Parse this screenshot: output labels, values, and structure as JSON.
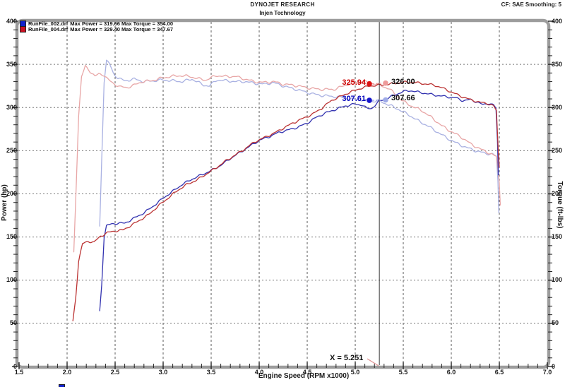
{
  "header": {
    "brand": "DYNOJET RESEARCH",
    "operator": "Injen Technology",
    "correction": "CF: SAE  Smoothing: 5"
  },
  "legend": {
    "runs": [
      {
        "file": "RunFile_002.drf",
        "power": "Max Power = 319.66",
        "torque": "Max Torque = 354.00",
        "color": "#1122cc"
      },
      {
        "file": "RunFile_004.drf",
        "power": "Max Power = 329.40",
        "torque": "Max Torque = 347.67",
        "color": "#cc1122"
      }
    ]
  },
  "cursor": {
    "x_value": 5.251,
    "x_label": "X = 5.251",
    "readouts": [
      {
        "value_label": "325.94",
        "text_color": "#cc0000",
        "dot_color": "#dd1111",
        "dot": {
          "rpm": 5.147,
          "value": 327.5
        }
      },
      {
        "value_label": "326.00",
        "text_color": "#111111",
        "dot_color": "#ee9a9a",
        "dot": {
          "rpm": 5.316,
          "value": 328.3
        }
      },
      {
        "value_label": "307.61",
        "text_color": "#0000bb",
        "dot_color": "#1515cc",
        "dot": {
          "rpm": 5.147,
          "value": 308.3
        }
      },
      {
        "value_label": "307.66",
        "text_color": "#111111",
        "dot_color": "#9fabe8",
        "dot": {
          "rpm": 5.316,
          "value": 308.8
        }
      }
    ]
  },
  "chart_data": {
    "type": "line",
    "title": "DYNOJET RESEARCH - Injen Technology",
    "xlabel": "Engine Speed (RPM x1000)",
    "ylabel_left": "Power (hp)",
    "ylabel_right": "Torque (ft-lbs)",
    "xlim": [
      1.5,
      7.0
    ],
    "ylim_left": [
      0,
      400
    ],
    "ylim_right": [
      0,
      400
    ],
    "x_major_step": 0.5,
    "x_minor_step": 0.1,
    "y_major_step": 50,
    "y_minor_step": 10,
    "grid": "dashed",
    "legend_position": "top-left",
    "cursor_x": 5.251,
    "series": [
      {
        "name": "RunFile_002.drf Torque (ft-lbs)",
        "color": "#a9b1e2",
        "axis": "right",
        "max": 354.0,
        "points": [
          [
            2.34,
            162
          ],
          [
            2.36,
            240
          ],
          [
            2.385,
            330
          ],
          [
            2.41,
            354
          ],
          [
            2.44,
            351
          ],
          [
            2.48,
            340
          ],
          [
            2.53,
            334
          ],
          [
            2.6,
            331
          ],
          [
            2.7,
            333
          ],
          [
            2.8,
            330
          ],
          [
            2.9,
            331
          ],
          [
            3.0,
            332
          ],
          [
            3.1,
            331
          ],
          [
            3.2,
            330
          ],
          [
            3.3,
            333
          ],
          [
            3.42,
            326
          ],
          [
            3.48,
            325
          ],
          [
            3.56,
            332
          ],
          [
            3.66,
            331
          ],
          [
            3.76,
            330
          ],
          [
            3.86,
            330
          ],
          [
            3.96,
            328
          ],
          [
            4.06,
            327
          ],
          [
            4.14,
            329
          ],
          [
            4.25,
            325
          ],
          [
            4.35,
            322
          ],
          [
            4.45,
            319
          ],
          [
            4.55,
            316
          ],
          [
            4.65,
            314
          ],
          [
            4.75,
            313
          ],
          [
            4.85,
            312
          ],
          [
            4.95,
            310
          ],
          [
            5.05,
            309
          ],
          [
            5.15,
            307
          ],
          [
            5.251,
            307.66
          ],
          [
            5.35,
            303
          ],
          [
            5.45,
            298
          ],
          [
            5.55,
            292
          ],
          [
            5.65,
            285
          ],
          [
            5.75,
            279
          ],
          [
            5.85,
            272
          ],
          [
            5.95,
            265
          ],
          [
            6.05,
            259
          ],
          [
            6.15,
            254
          ],
          [
            6.25,
            250
          ],
          [
            6.35,
            247
          ],
          [
            6.43,
            246
          ],
          [
            6.47,
            243
          ],
          [
            6.485,
            215
          ],
          [
            6.495,
            178
          ]
        ]
      },
      {
        "name": "RunFile_004.drf Torque (ft-lbs)",
        "color": "#e8a6a6",
        "axis": "right",
        "max": 347.67,
        "points": [
          [
            2.07,
            132
          ],
          [
            2.095,
            210
          ],
          [
            2.12,
            290
          ],
          [
            2.15,
            335
          ],
          [
            2.19,
            348
          ],
          [
            2.24,
            342
          ],
          [
            2.29,
            336
          ],
          [
            2.33,
            339
          ],
          [
            2.38,
            338
          ],
          [
            2.43,
            332
          ],
          [
            2.48,
            328
          ],
          [
            2.55,
            324
          ],
          [
            2.62,
            323
          ],
          [
            2.7,
            326
          ],
          [
            2.78,
            330
          ],
          [
            2.88,
            331
          ],
          [
            2.98,
            334
          ],
          [
            3.08,
            336
          ],
          [
            3.18,
            337
          ],
          [
            3.28,
            336
          ],
          [
            3.38,
            333
          ],
          [
            3.45,
            332
          ],
          [
            3.55,
            337
          ],
          [
            3.65,
            336
          ],
          [
            3.75,
            336
          ],
          [
            3.85,
            333
          ],
          [
            3.95,
            330
          ],
          [
            4.05,
            329
          ],
          [
            4.15,
            330
          ],
          [
            4.25,
            327
          ],
          [
            4.35,
            326
          ],
          [
            4.45,
            324
          ],
          [
            4.55,
            322
          ],
          [
            4.65,
            321
          ],
          [
            4.78,
            321
          ],
          [
            4.88,
            325
          ],
          [
            4.98,
            329
          ],
          [
            5.08,
            330
          ],
          [
            5.18,
            328
          ],
          [
            5.251,
            326.0
          ],
          [
            5.35,
            322
          ],
          [
            5.42,
            315
          ],
          [
            5.5,
            307
          ],
          [
            5.6,
            301
          ],
          [
            5.7,
            296
          ],
          [
            5.8,
            288
          ],
          [
            5.9,
            279
          ],
          [
            6.0,
            272
          ],
          [
            6.1,
            266
          ],
          [
            6.2,
            258
          ],
          [
            6.3,
            252
          ],
          [
            6.4,
            247
          ],
          [
            6.47,
            243
          ],
          [
            6.5,
            213
          ],
          [
            6.51,
            187
          ]
        ]
      },
      {
        "name": "RunFile_002.drf Power (hp)",
        "color": "#3232b0",
        "axis": "left",
        "max": 319.66,
        "points": [
          [
            2.34,
            64
          ],
          [
            2.36,
            95
          ],
          [
            2.385,
            150
          ],
          [
            2.41,
            163
          ],
          [
            2.46,
            165
          ],
          [
            2.53,
            166
          ],
          [
            2.6,
            166
          ],
          [
            2.7,
            172
          ],
          [
            2.8,
            178
          ],
          [
            2.9,
            186
          ],
          [
            3.0,
            195
          ],
          [
            3.1,
            203
          ],
          [
            3.2,
            211
          ],
          [
            3.3,
            217
          ],
          [
            3.4,
            222
          ],
          [
            3.5,
            227
          ],
          [
            3.6,
            233
          ],
          [
            3.7,
            241
          ],
          [
            3.8,
            248
          ],
          [
            3.9,
            255
          ],
          [
            4.0,
            262
          ],
          [
            4.1,
            266
          ],
          [
            4.2,
            271
          ],
          [
            4.3,
            274
          ],
          [
            4.4,
            277
          ],
          [
            4.5,
            282
          ],
          [
            4.6,
            289
          ],
          [
            4.7,
            294
          ],
          [
            4.8,
            298
          ],
          [
            4.9,
            302
          ],
          [
            5.0,
            304
          ],
          [
            5.07,
            303
          ],
          [
            5.12,
            299
          ],
          [
            5.17,
            299
          ],
          [
            5.22,
            304
          ],
          [
            5.251,
            307.61
          ],
          [
            5.32,
            310
          ],
          [
            5.42,
            315
          ],
          [
            5.5,
            318.5
          ],
          [
            5.57,
            319.66
          ],
          [
            5.65,
            318
          ],
          [
            5.75,
            316
          ],
          [
            5.85,
            314
          ],
          [
            5.95,
            312.5
          ],
          [
            6.05,
            311
          ],
          [
            6.12,
            308
          ],
          [
            6.2,
            309
          ],
          [
            6.28,
            306
          ],
          [
            6.33,
            303
          ],
          [
            6.38,
            305
          ],
          [
            6.44,
            303
          ],
          [
            6.465,
            299
          ],
          [
            6.48,
            262
          ],
          [
            6.49,
            222
          ]
        ]
      },
      {
        "name": "RunFile_004.drf Power (hp)",
        "color": "#bb3333",
        "axis": "left",
        "max": 329.4,
        "points": [
          [
            2.06,
            52
          ],
          [
            2.09,
            80
          ],
          [
            2.12,
            122
          ],
          [
            2.16,
            142
          ],
          [
            2.22,
            145
          ],
          [
            2.28,
            144
          ],
          [
            2.35,
            151
          ],
          [
            2.42,
            155
          ],
          [
            2.5,
            157
          ],
          [
            2.58,
            158
          ],
          [
            2.66,
            163
          ],
          [
            2.75,
            169
          ],
          [
            2.85,
            176
          ],
          [
            2.95,
            186
          ],
          [
            3.05,
            195
          ],
          [
            3.15,
            204
          ],
          [
            3.25,
            211
          ],
          [
            3.35,
            216
          ],
          [
            3.45,
            223
          ],
          [
            3.55,
            230
          ],
          [
            3.65,
            238
          ],
          [
            3.75,
            245
          ],
          [
            3.85,
            252
          ],
          [
            3.95,
            260
          ],
          [
            4.05,
            265
          ],
          [
            4.15,
            270
          ],
          [
            4.25,
            276
          ],
          [
            4.35,
            282
          ],
          [
            4.45,
            287
          ],
          [
            4.55,
            292
          ],
          [
            4.65,
            299
          ],
          [
            4.75,
            308
          ],
          [
            4.85,
            313
          ],
          [
            4.95,
            318
          ],
          [
            5.05,
            322
          ],
          [
            5.15,
            325
          ],
          [
            5.251,
            325.94
          ],
          [
            5.35,
            327
          ],
          [
            5.45,
            328.5
          ],
          [
            5.52,
            329.4
          ],
          [
            5.62,
            329
          ],
          [
            5.72,
            327.5
          ],
          [
            5.82,
            326
          ],
          [
            5.9,
            323
          ],
          [
            6.0,
            318
          ],
          [
            6.1,
            313
          ],
          [
            6.2,
            309
          ],
          [
            6.3,
            306
          ],
          [
            6.38,
            304.5
          ],
          [
            6.44,
            302
          ],
          [
            6.47,
            296
          ],
          [
            6.49,
            248
          ],
          [
            6.5,
            231
          ]
        ]
      }
    ]
  }
}
